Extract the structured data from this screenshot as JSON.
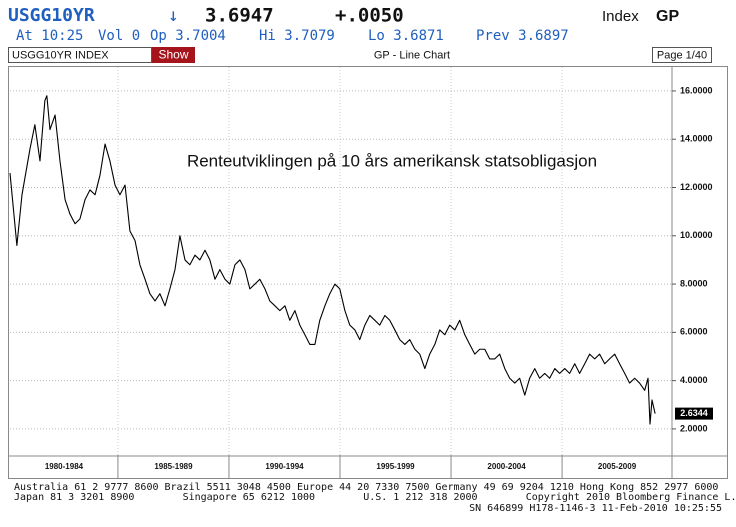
{
  "header": {
    "ticker": "USGG10YR",
    "arrow": "↓",
    "price": "3.6947",
    "change": "+.0050",
    "market": "Index",
    "function": "GP",
    "quote": [
      "At 10:25",
      "Vol 0",
      "Op 3.7004",
      "Hi 3.7079",
      "Lo 3.6871",
      "Prev 3.6897"
    ]
  },
  "toolbar": {
    "security": "USGG10YR INDEX",
    "button": "Show",
    "title": "GP - Line Chart",
    "page": "Page 1/40"
  },
  "footer": {
    "lines": [
      "Australia 61 2 9777 8600 Brazil 5511 3048 4500 Europe 44 20 7330 7500 Germany 49 69 9204 1210 Hong Kong 852 2977 6000",
      "Japan 81 3 3201 8900        Singapore 65 6212 1000        U.S. 1 212 318 2000        Copyright 2010 Bloomberg Finance L.P.",
      "SN 646899 H178-1146-3 11-Feb-2010 10:25:55"
    ]
  },
  "chart_data": {
    "type": "line",
    "annotation": "Renteutviklingen på 10 års amerikansk statsobligasjon",
    "x": [
      1980.14,
      1980.45,
      1980.68,
      1981.04,
      1981.26,
      1981.49,
      1981.71,
      1981.8,
      1981.94,
      1982.17,
      1982.39,
      1982.62,
      1982.84,
      1983.07,
      1983.29,
      1983.52,
      1983.74,
      1983.97,
      1984.19,
      1984.42,
      1984.64,
      1984.87,
      1985.09,
      1985.32,
      1985.54,
      1985.77,
      1985.99,
      1986.22,
      1986.44,
      1986.67,
      1986.89,
      1987.12,
      1987.34,
      1987.57,
      1987.79,
      1988.02,
      1988.24,
      1988.47,
      1988.69,
      1988.92,
      1989.14,
      1989.37,
      1989.59,
      1989.82,
      1990.04,
      1990.27,
      1990.49,
      1990.72,
      1990.94,
      1991.17,
      1991.39,
      1991.62,
      1991.84,
      1992.07,
      1992.29,
      1992.52,
      1992.74,
      1992.97,
      1993.19,
      1993.42,
      1993.64,
      1993.87,
      1994.09,
      1994.32,
      1994.54,
      1994.77,
      1994.99,
      1995.22,
      1995.44,
      1995.67,
      1995.89,
      1996.12,
      1996.34,
      1996.57,
      1996.79,
      1997.02,
      1997.24,
      1997.47,
      1997.69,
      1997.92,
      1998.14,
      1998.37,
      1998.59,
      1998.82,
      1999.04,
      1999.27,
      1999.49,
      1999.72,
      1999.94,
      2000.17,
      2000.39,
      2000.62,
      2000.84,
      2001.07,
      2001.29,
      2001.52,
      2001.74,
      2001.97,
      2002.19,
      2002.42,
      2002.64,
      2002.87,
      2003.09,
      2003.32,
      2003.54,
      2003.77,
      2003.99,
      2004.22,
      2004.44,
      2004.67,
      2004.89,
      2005.12,
      2005.34,
      2005.57,
      2005.79,
      2006.02,
      2006.24,
      2006.47,
      2006.69,
      2006.92,
      2007.14,
      2007.37,
      2007.59,
      2007.82,
      2008.04,
      2008.27,
      2008.49,
      2008.72,
      2008.87,
      2008.96,
      2009.05,
      2009.19
    ],
    "series": [
      {
        "name": "USGG10YR INDEX",
        "color": "#000000",
        "values": [
          12.6,
          9.6,
          11.7,
          13.6,
          14.6,
          13.1,
          15.6,
          15.8,
          14.4,
          15.0,
          13.1,
          11.5,
          10.9,
          10.5,
          10.7,
          11.5,
          11.9,
          11.7,
          12.5,
          13.8,
          13.1,
          12.1,
          11.7,
          12.1,
          10.2,
          9.8,
          8.8,
          8.2,
          7.6,
          7.3,
          7.6,
          7.1,
          7.8,
          8.6,
          10.0,
          9.0,
          8.8,
          9.2,
          9.0,
          9.4,
          9.0,
          8.2,
          8.6,
          8.2,
          8.0,
          8.8,
          9.0,
          8.6,
          7.8,
          8.0,
          8.2,
          7.8,
          7.3,
          7.1,
          6.9,
          7.1,
          6.5,
          6.9,
          6.3,
          5.9,
          5.5,
          5.5,
          6.5,
          7.1,
          7.6,
          8.0,
          7.8,
          6.9,
          6.3,
          6.1,
          5.7,
          6.3,
          6.7,
          6.5,
          6.3,
          6.7,
          6.5,
          6.1,
          5.7,
          5.5,
          5.7,
          5.3,
          5.1,
          4.5,
          5.1,
          5.5,
          6.1,
          5.9,
          6.3,
          6.1,
          6.5,
          5.9,
          5.5,
          5.1,
          5.3,
          5.3,
          4.9,
          4.9,
          5.1,
          4.5,
          4.1,
          3.9,
          4.1,
          3.4,
          4.1,
          4.5,
          4.1,
          4.3,
          4.1,
          4.5,
          4.3,
          4.5,
          4.3,
          4.7,
          4.3,
          4.7,
          5.1,
          4.9,
          5.1,
          4.7,
          4.9,
          5.1,
          4.7,
          4.3,
          3.9,
          4.1,
          3.9,
          3.6,
          4.1,
          2.2,
          3.2,
          2.6344
        ]
      }
    ],
    "last_value": 2.6344,
    "xlim": [
      1980.14,
      2009.95
    ],
    "xticks": [
      1985,
      1990,
      1995,
      2000,
      2005
    ],
    "period_labels": [
      "1980-1984",
      "1985-1989",
      "1990-1994",
      "1995-1999",
      "2000-2004",
      "2005-2009"
    ],
    "ylim": [
      0.92,
      16.66
    ],
    "yticks": [
      {
        "value": 2,
        "label": "2.0000"
      },
      {
        "value": 4,
        "label": "4.0000"
      },
      {
        "value": 6,
        "label": "6.0000"
      },
      {
        "value": 8,
        "label": "8.0000"
      },
      {
        "value": 10,
        "label": "10.0000"
      },
      {
        "value": 12,
        "label": "12.0000"
      },
      {
        "value": 14,
        "label": "14.0000"
      },
      {
        "value": 16,
        "label": "16.0000"
      }
    ],
    "grid": true
  }
}
